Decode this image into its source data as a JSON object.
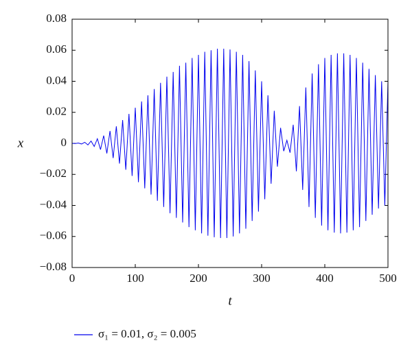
{
  "chart_data": {
    "type": "line",
    "xlabel": "t",
    "ylabel": "x",
    "x": [
      0,
      5,
      10,
      15,
      20,
      25,
      30,
      35,
      40,
      45,
      50,
      55,
      60,
      65,
      70,
      75,
      80,
      85,
      90,
      95,
      100,
      105,
      110,
      115,
      120,
      125,
      130,
      135,
      140,
      145,
      150,
      155,
      160,
      165,
      170,
      175,
      180,
      185,
      190,
      195,
      200,
      205,
      210,
      215,
      220,
      225,
      230,
      235,
      240,
      245,
      250,
      255,
      260,
      265,
      270,
      275,
      280,
      285,
      290,
      295,
      300,
      305,
      310,
      315,
      320,
      325,
      330,
      335,
      340,
      345,
      350,
      355,
      360,
      365,
      370,
      375,
      380,
      385,
      390,
      395,
      400,
      405,
      410,
      415,
      420,
      425,
      430,
      435,
      440,
      445,
      450,
      455,
      460,
      465,
      470,
      475,
      480,
      485,
      490,
      495,
      500
    ],
    "series": [
      {
        "name": "σ₁ = 0.01, σ₂ = 0.005",
        "color": "#0000ee",
        "values": [
          0,
          -0.0001,
          0.0002,
          -0.0004,
          0.0007,
          -0.001,
          0.0015,
          -0.002,
          0.003,
          -0.004,
          0.005,
          -0.0065,
          0.008,
          -0.0095,
          0.011,
          -0.013,
          0.015,
          -0.017,
          0.019,
          -0.021,
          0.023,
          -0.025,
          0.027,
          -0.029,
          0.031,
          -0.033,
          0.035,
          -0.037,
          0.039,
          -0.041,
          0.043,
          -0.045,
          0.046,
          -0.048,
          0.05,
          -0.051,
          0.052,
          -0.054,
          0.055,
          -0.056,
          0.057,
          -0.058,
          0.059,
          -0.0595,
          0.06,
          -0.0605,
          0.061,
          -0.061,
          0.061,
          -0.061,
          0.0605,
          -0.06,
          0.059,
          -0.058,
          0.057,
          -0.055,
          0.053,
          -0.05,
          0.047,
          -0.044,
          0.04,
          -0.036,
          0.031,
          -0.026,
          0.021,
          -0.015,
          0.01,
          -0.005,
          0.002,
          -0.006,
          0.012,
          -0.018,
          0.024,
          -0.03,
          0.036,
          -0.041,
          0.045,
          -0.048,
          0.051,
          -0.053,
          0.055,
          -0.056,
          0.057,
          -0.0575,
          0.058,
          -0.058,
          0.058,
          -0.0575,
          0.057,
          -0.056,
          0.055,
          -0.054,
          0.052,
          -0.05,
          0.048,
          -0.046,
          0.044,
          -0.042,
          0.04,
          -0.04,
          0.04
        ]
      }
    ],
    "xlim": [
      0,
      500
    ],
    "xticks": [
      0,
      100,
      200,
      300,
      400,
      500
    ],
    "ylim": [
      -0.08,
      0.08
    ],
    "yticks": [
      {
        "value": -0.08,
        "label": "−0.08"
      },
      {
        "value": -0.06,
        "label": "−0.06"
      },
      {
        "value": -0.04,
        "label": "−0.04"
      },
      {
        "value": -0.02,
        "label": "−0.02"
      },
      0,
      0.02,
      0.04,
      0.06,
      0.08
    ],
    "legend": "bottom-left"
  }
}
